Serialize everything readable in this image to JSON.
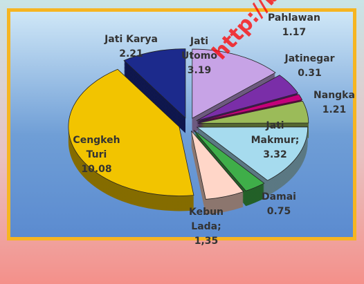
{
  "watermark": "http://b",
  "chart_data": {
    "type": "pie",
    "categories": [
      "Jati Utomo",
      "Pahlawan",
      "Jatinegar",
      "Nangka",
      "Jati Makmur;",
      "Damai",
      "Kebun Lada;",
      "Cengkeh Turi",
      "Jati Karya"
    ],
    "values": [
      3.19,
      1.17,
      0.31,
      1.21,
      3.32,
      0.75,
      1.35,
      10.08,
      2.21
    ],
    "value_labels": [
      "3.19",
      "1.17",
      "0.31",
      "1.21",
      "3.32",
      "0.75",
      "1,35",
      "10.08",
      "2.21"
    ],
    "colors": [
      "#c7a3e6",
      "#7a2ea8",
      "#c4007a",
      "#9bbb59",
      "#a6dbee",
      "#3fae49",
      "#ffd6c8",
      "#f2c400",
      "#1c2a8c"
    ]
  }
}
